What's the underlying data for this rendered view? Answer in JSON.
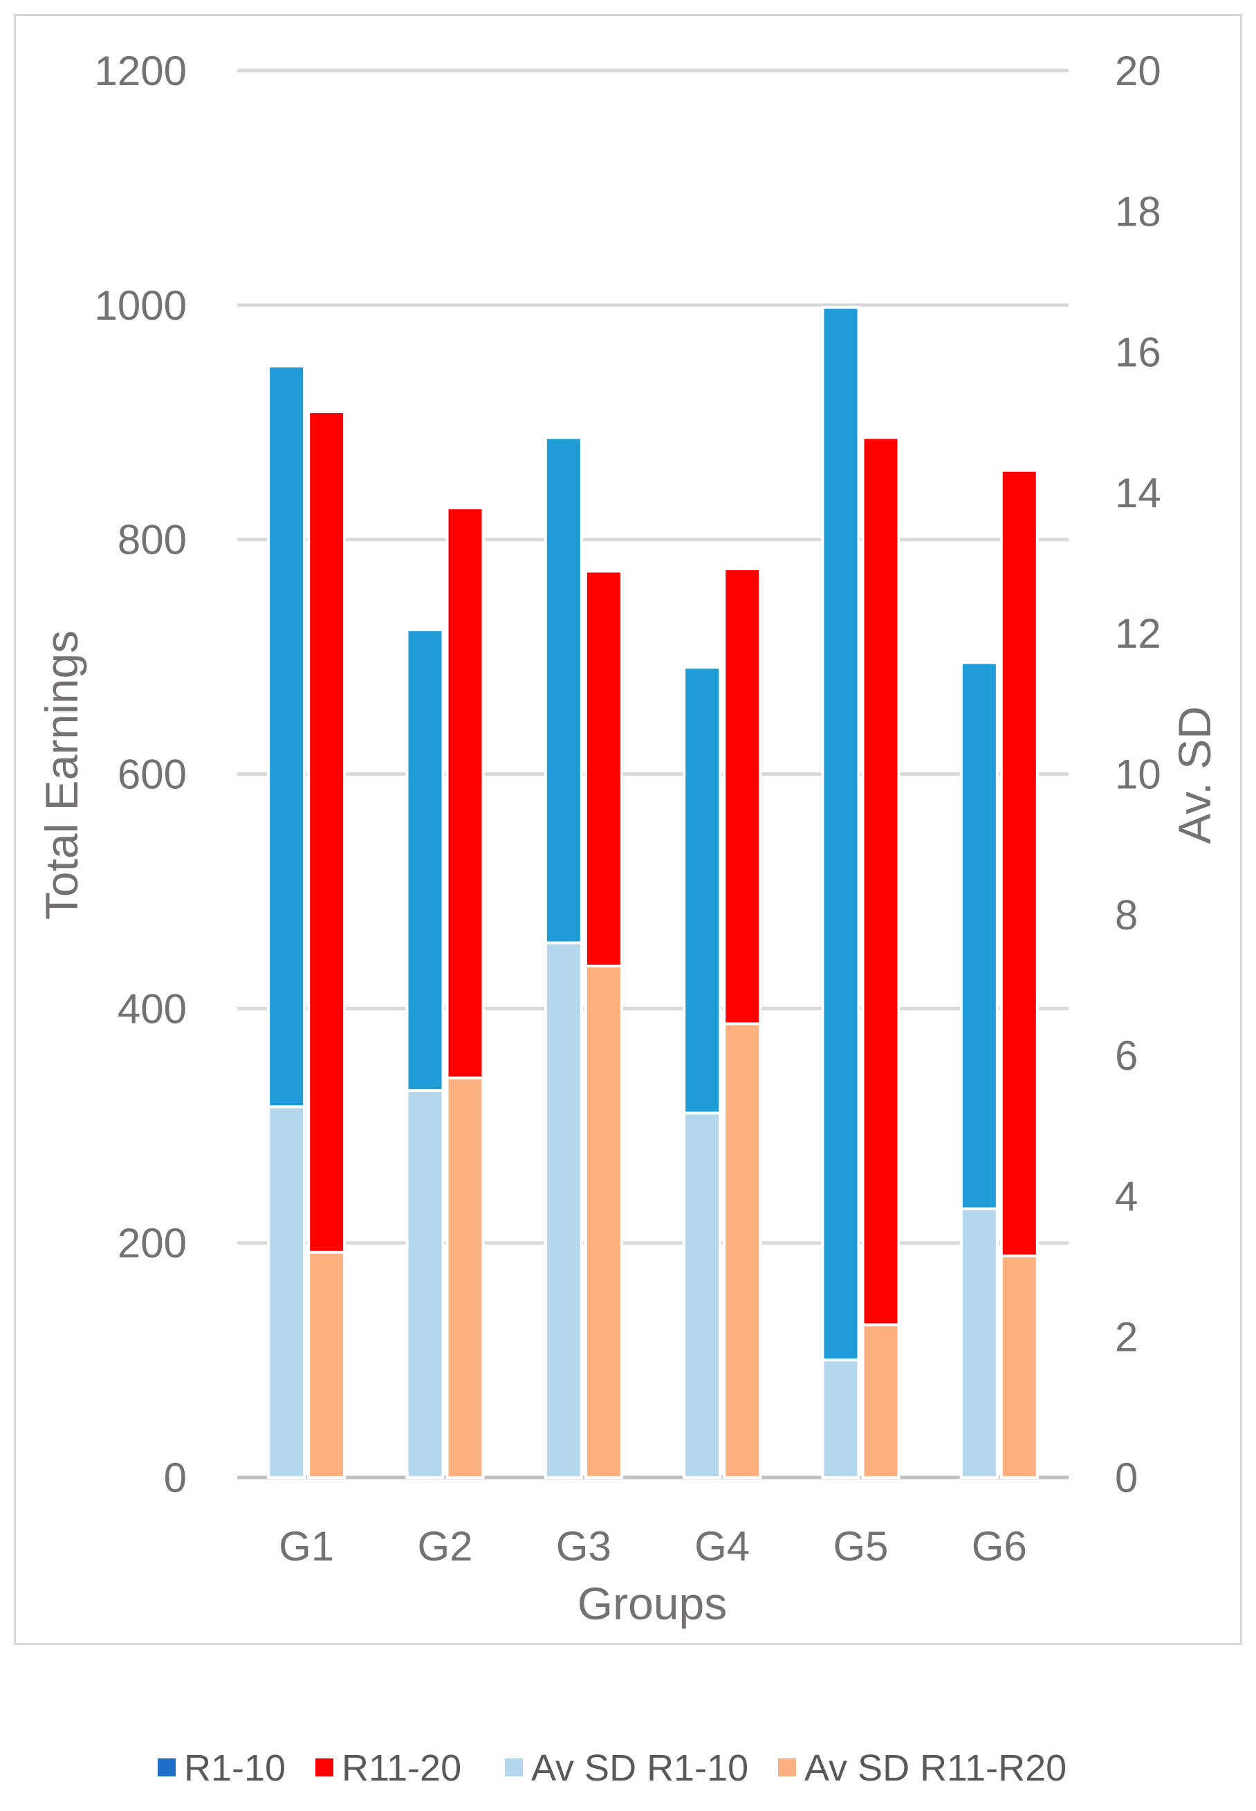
{
  "chart_data": {
    "type": "bar",
    "categories": [
      "G1",
      "G2",
      "G3",
      "G4",
      "G5",
      "G6"
    ],
    "xlabel": "Groups",
    "ylabel": "Total Earnings",
    "y2label": "Av. SD",
    "ylim": [
      0,
      1200
    ],
    "y2lim": [
      0,
      20
    ],
    "yticks": [
      "0",
      "200",
      "400",
      "600",
      "800",
      "1000",
      "1200"
    ],
    "y2ticks": [
      "0",
      "2",
      "4",
      "6",
      "8",
      "10",
      "12",
      "14",
      "16",
      "18",
      "20"
    ],
    "grid": true,
    "legend_position": "bottom",
    "series": [
      {
        "name": "R1-10",
        "axis": "left",
        "values": [
          948,
          723,
          887,
          691,
          998,
          695
        ],
        "color": "#1f9bd7",
        "legend_color": "#1f6fc5"
      },
      {
        "name": "R11-20",
        "axis": "left",
        "values": [
          909,
          827,
          773,
          775,
          887,
          859
        ],
        "color": "#ff0000",
        "legend_color": "#ff0000"
      },
      {
        "name": "Av SD R1-10",
        "axis": "right",
        "values": [
          5.27,
          5.5,
          7.6,
          5.18,
          1.67,
          3.82
        ],
        "color": "#b4d7ee",
        "legend_color": "#b4d7ee"
      },
      {
        "name": "Av SD R11-R20",
        "axis": "right",
        "values": [
          3.2,
          5.68,
          7.27,
          6.45,
          2.17,
          3.15
        ],
        "color": "#fdb07f",
        "legend_color": "#fdb07f"
      }
    ]
  }
}
